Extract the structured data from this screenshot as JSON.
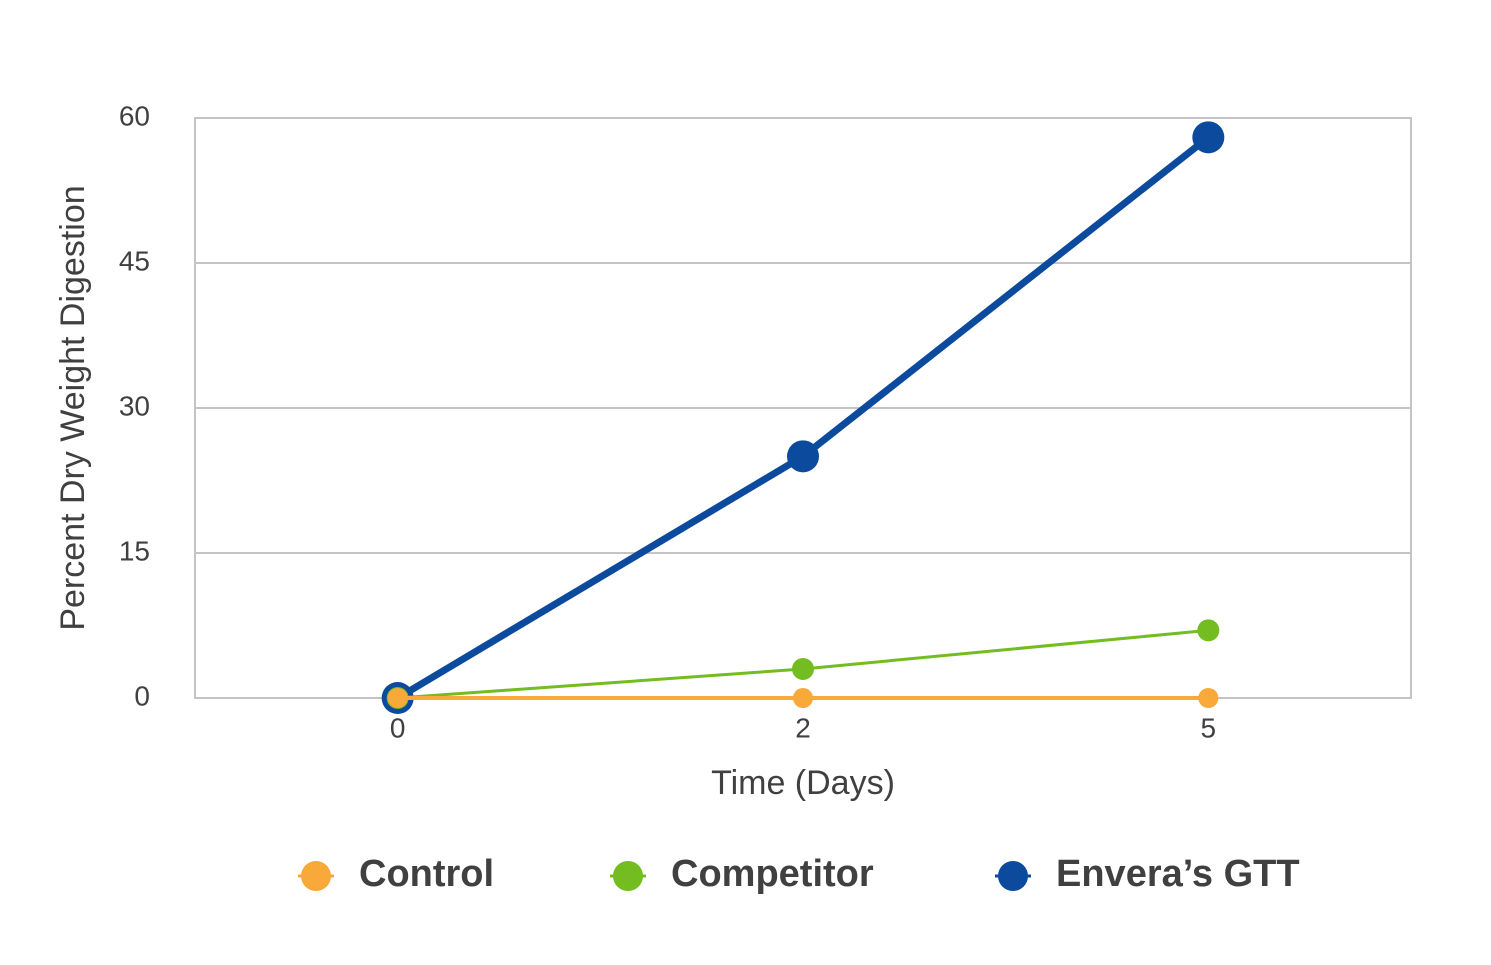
{
  "chart_data": {
    "type": "line",
    "categories": [
      "0",
      "2",
      "5"
    ],
    "series": [
      {
        "name": "Control",
        "color": "#f9a93a",
        "values": [
          0,
          0,
          0
        ]
      },
      {
        "name": "Competitor",
        "color": "#73bd21",
        "values": [
          0,
          3,
          7
        ]
      },
      {
        "name": "Envera’s GTT",
        "color": "#0c4a9e",
        "values": [
          0,
          25,
          58
        ]
      }
    ],
    "x_label": "Time (Days)",
    "y_label": "Percent Dry Weight Digestion",
    "ylim": [
      0,
      60
    ],
    "yticks": [
      0,
      15,
      30,
      45,
      60
    ],
    "grid": true,
    "legend": "bottom"
  }
}
